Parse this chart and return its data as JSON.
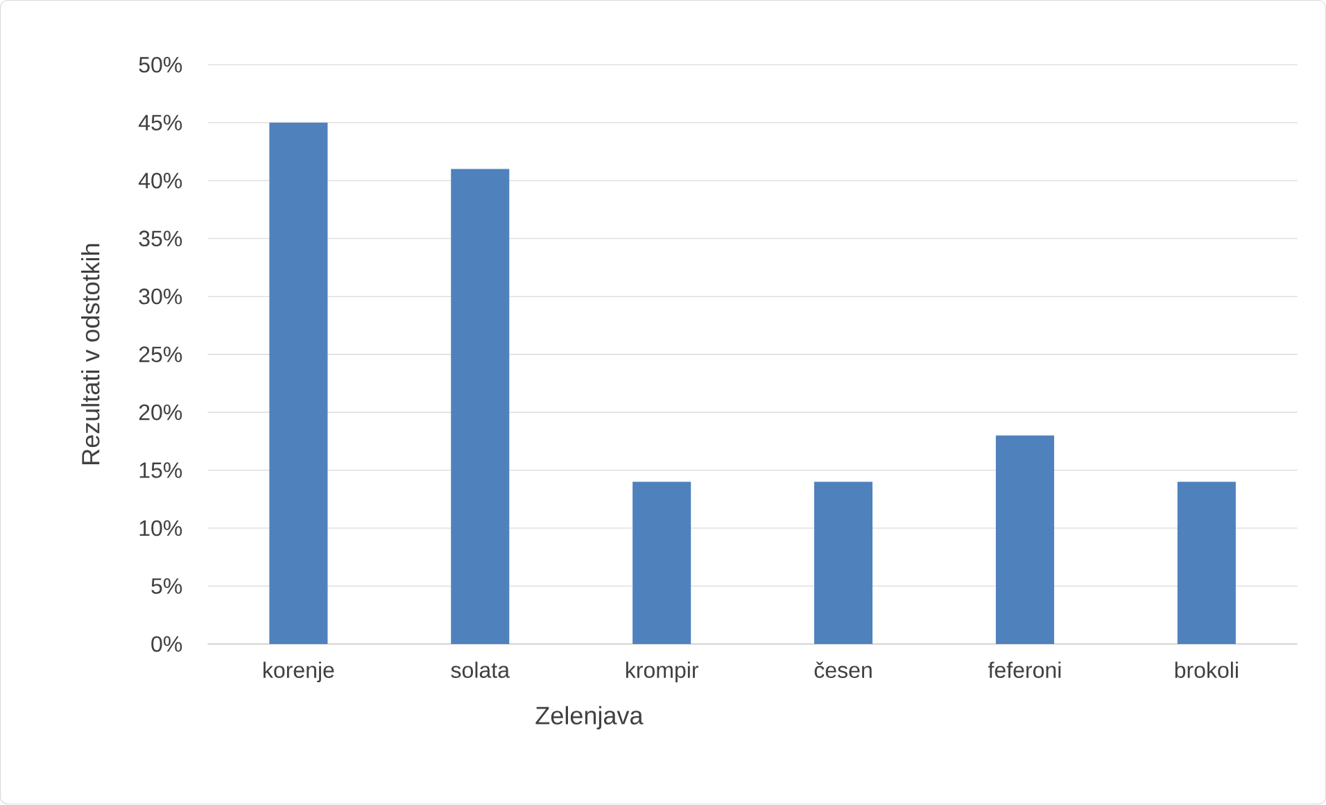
{
  "chart_data": {
    "type": "bar",
    "xlabel": "Zelenjava",
    "ylabel": "Rezultati v odstotkih",
    "categories": [
      "korenje",
      "solata",
      "krompir",
      "česen",
      "feferoni",
      "brokoli"
    ],
    "values": [
      45,
      41,
      14,
      14,
      18,
      14
    ],
    "color": "#4f81bd",
    "ylim": [
      0,
      50
    ],
    "yticks": [
      {
        "value": 0,
        "label": "0%"
      },
      {
        "value": 5,
        "label": "5%"
      },
      {
        "value": 10,
        "label": "10%"
      },
      {
        "value": 15,
        "label": "15%"
      },
      {
        "value": 20,
        "label": "20%"
      },
      {
        "value": 25,
        "label": "25%"
      },
      {
        "value": 30,
        "label": "30%"
      },
      {
        "value": 35,
        "label": "35%"
      },
      {
        "value": 40,
        "label": "40%"
      },
      {
        "value": 45,
        "label": "45%"
      },
      {
        "value": 50,
        "label": "50%"
      }
    ],
    "grid": "y"
  }
}
